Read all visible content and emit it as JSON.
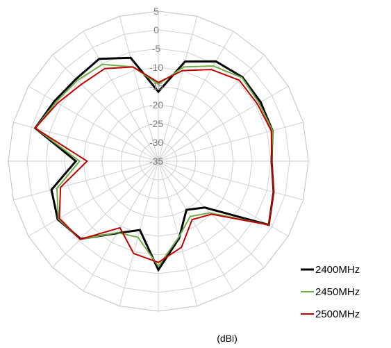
{
  "chart_data": {
    "type": "radar",
    "radial_ticks": [
      5,
      0,
      -5,
      -10,
      -15,
      -20,
      -25,
      -30,
      -35
    ],
    "rlim": [
      -35,
      5
    ],
    "spokes": 24,
    "grid": true,
    "legend_position": "bottom-right",
    "unit_label": "(dBi)",
    "series": [
      {
        "name": "2400MHz",
        "color": "#000000",
        "values": [
          -16.5,
          -7.5,
          -4.3,
          -3.3,
          -3.5,
          -3.5,
          -4.8,
          -3.2,
          -1.0,
          -17.5,
          -20.0,
          -13.7,
          -6.0,
          -16.0,
          -12.8,
          -5.7,
          -4.0,
          -5.5,
          -13.0,
          -1.0,
          -3.0,
          -4.0,
          -3.5,
          -6.5
        ]
      },
      {
        "name": "2450MHz",
        "color": "#70ad47",
        "values": [
          -14.5,
          -9.0,
          -5.7,
          -3.5,
          -4.0,
          -3.5,
          -4.8,
          -3.2,
          -1.0,
          -15.5,
          -18.0,
          -14.0,
          -7.0,
          -14.0,
          -13.0,
          -5.5,
          -4.2,
          -7.0,
          -14.0,
          -1.0,
          -3.5,
          -4.5,
          -5.2,
          -9.0
        ]
      },
      {
        "name": "2500MHz",
        "color": "#c00000",
        "values": [
          -14.0,
          -10.0,
          -6.8,
          -4.5,
          -4.5,
          -3.8,
          -4.8,
          -3.2,
          -1.0,
          -15.0,
          -17.0,
          -11.2,
          -8.0,
          -9.5,
          -14.5,
          -5.5,
          -4.5,
          -8.0,
          -16.0,
          -1.0,
          -4.0,
          -6.0,
          -6.5,
          -9.0
        ]
      }
    ]
  }
}
